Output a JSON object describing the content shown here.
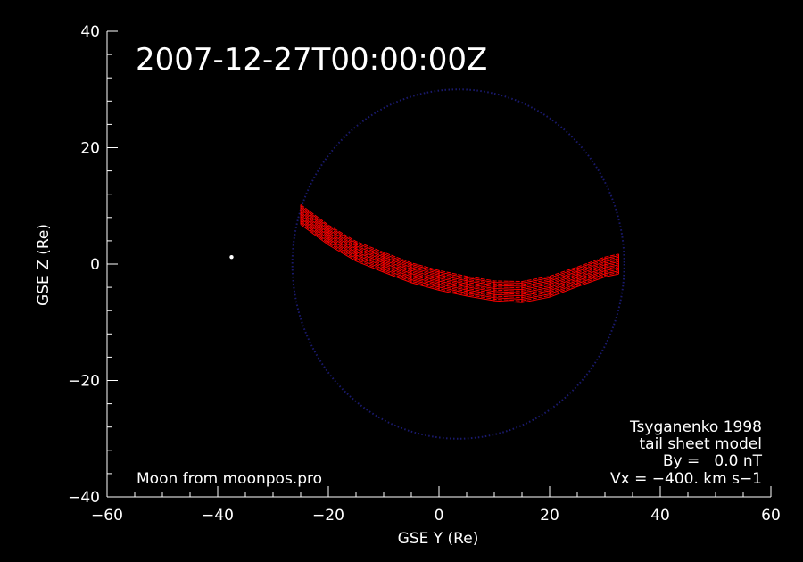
{
  "chart_data": {
    "type": "scatter",
    "title": "2007-12-27T00:00:00Z",
    "xlabel": "GSE Y (Re)",
    "ylabel": "GSE Z (Re)",
    "xlim": [
      -60,
      60
    ],
    "ylim": [
      -40,
      40
    ],
    "x_ticks": [
      -60,
      -40,
      -20,
      0,
      20,
      40,
      60
    ],
    "y_ticks": [
      -40,
      -20,
      0,
      20,
      40
    ],
    "x_tick_labels": [
      "−60",
      "−40",
      "−20",
      "0",
      "20",
      "40",
      "60"
    ],
    "y_tick_labels": [
      "−40",
      "−20",
      "0",
      "20",
      "40"
    ],
    "grid": false,
    "colors": {
      "background": "#000000",
      "axes": "#ffffff",
      "sheet": "#ff0000",
      "boundary": "#1a1a6e",
      "moon": "#ffffff"
    },
    "moon_position": {
      "y": -37.5,
      "z": 1.2
    },
    "boundary_circle": {
      "center_y": 3.5,
      "center_z": 0,
      "radius": 30
    },
    "tail_sheet": {
      "y": [
        -25,
        -20,
        -15,
        -10,
        -5,
        0,
        5,
        10,
        15,
        20,
        25,
        30,
        32.5
      ],
      "z_center": [
        8.5,
        5.0,
        2.2,
        0.3,
        -1.5,
        -2.8,
        -3.8,
        -4.6,
        -4.8,
        -3.9,
        -2.2,
        -0.5,
        0
      ],
      "z_halfwidth": [
        1.7,
        1.7,
        1.7,
        1.7,
        1.7,
        1.7,
        1.7,
        1.7,
        1.8,
        1.8,
        1.7,
        1.7,
        1.7
      ]
    },
    "annotations": {
      "moon_source": "Moon from moonpos.pro",
      "model_line1": "Tsyganenko 1998",
      "model_line2": "tail sheet model",
      "model_line3": "By =   0.0 nT",
      "model_line4": "Vx = −400. km s−1"
    }
  }
}
